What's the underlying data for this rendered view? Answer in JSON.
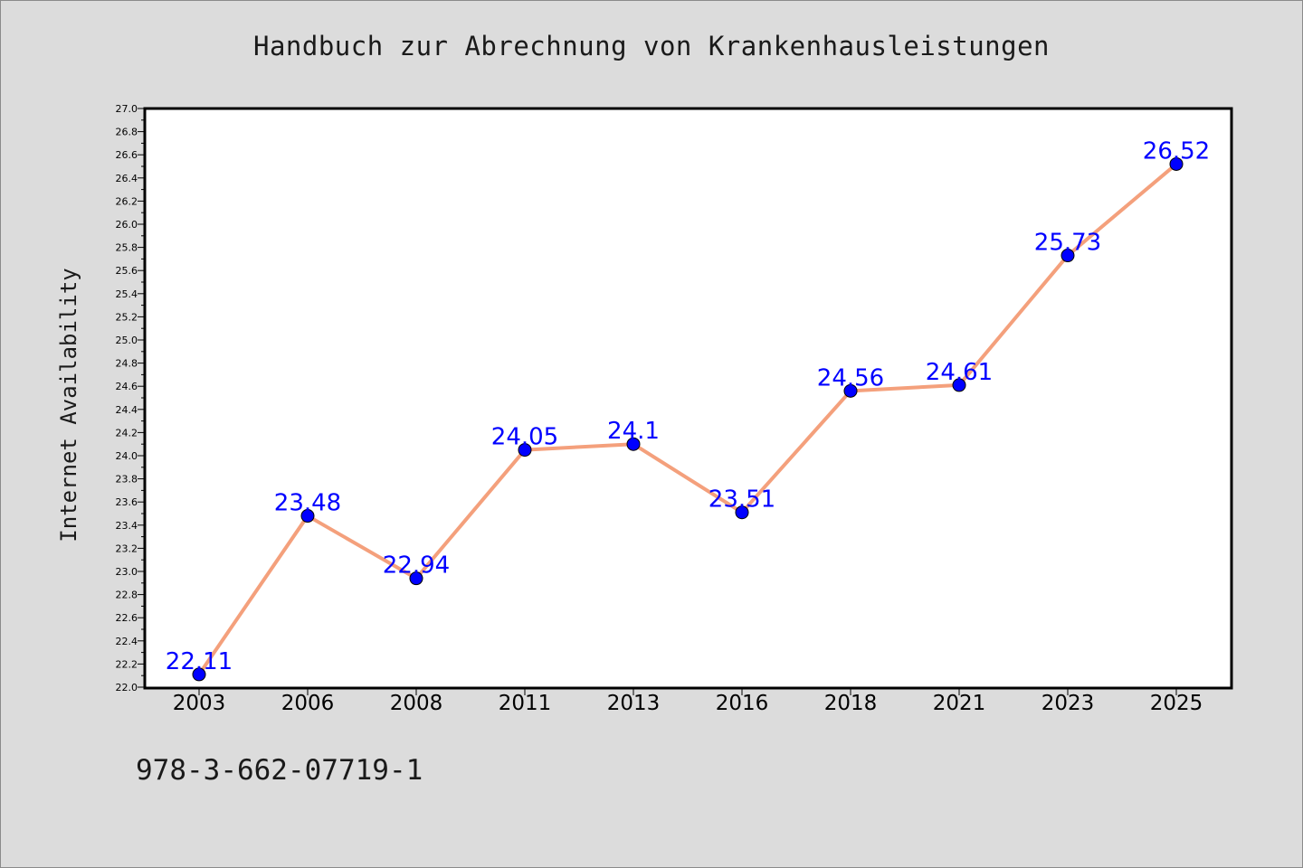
{
  "title": "Handbuch zur Abrechnung von Krankenhausleistungen",
  "footer_text": "978-3-662-07719-1",
  "chart_data": {
    "type": "line",
    "title": "Handbuch zur Abrechnung von Krankenhausleistungen",
    "xlabel": "",
    "ylabel": "Internet Availability",
    "categories": [
      "2003",
      "2006",
      "2008",
      "2011",
      "2013",
      "2016",
      "2018",
      "2021",
      "2023",
      "2025"
    ],
    "series": [
      {
        "values": [
          22.11,
          23.48,
          22.94,
          24.05,
          24.1,
          23.51,
          24.56,
          24.61,
          25.73,
          26.52
        ],
        "labels": [
          "22.11",
          "23.48",
          "22.94",
          "24.05",
          "24.1",
          "23.51",
          "24.56",
          "24.61",
          "25.73",
          "26.52"
        ],
        "line_color": "#f4a07c",
        "marker_color": "#0000ff"
      }
    ],
    "ylim": [
      22.0,
      27.0
    ],
    "y_ticks": [
      "22.0",
      "22.2",
      "22.4",
      "22.6",
      "22.8",
      "23.0",
      "23.2",
      "23.4",
      "23.6",
      "23.8",
      "24.0",
      "24.2",
      "24.4",
      "24.6",
      "24.8",
      "25.0",
      "25.2",
      "25.4",
      "25.6",
      "25.8",
      "26.0",
      "26.2",
      "26.4",
      "26.6",
      "26.8",
      "27.0"
    ],
    "grid": false,
    "label_color": "#0000ff"
  }
}
